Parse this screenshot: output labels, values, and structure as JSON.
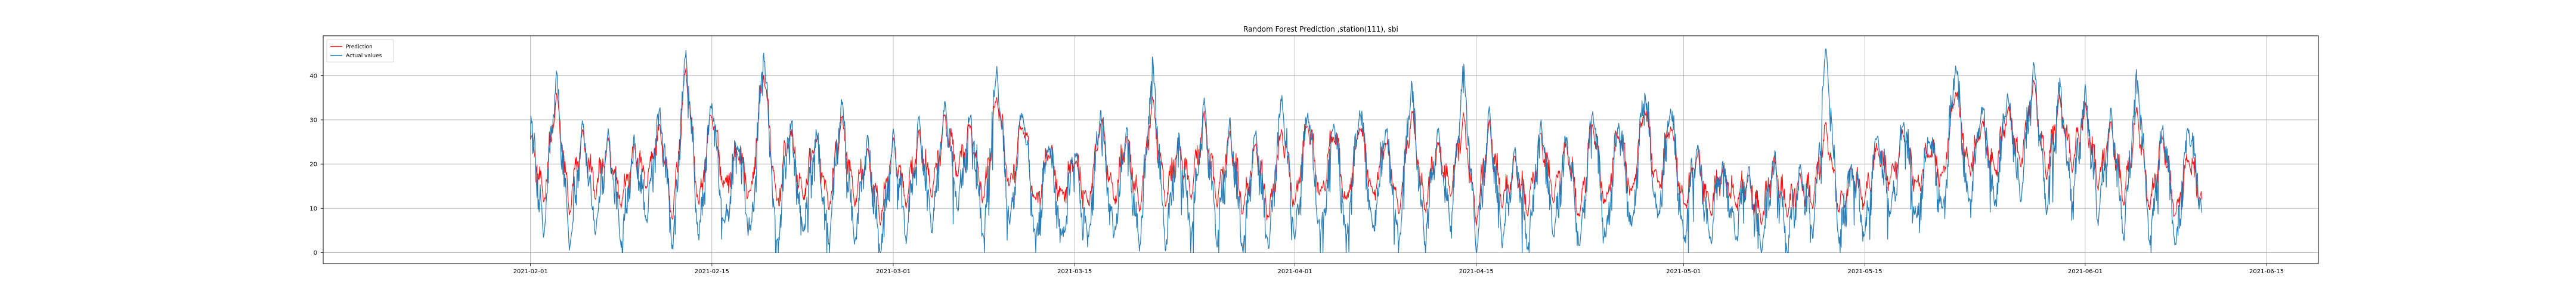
{
  "chart_data": {
    "type": "line",
    "title": "Random Forest Prediction ,station(111), sbi",
    "xlabel": "",
    "ylabel": "",
    "x_range": [
      "2021-01-16",
      "2021-06-19"
    ],
    "ylim": [
      -2.5,
      49
    ],
    "grid": true,
    "legend_position": "top-left",
    "x_ticks": [
      "2021-02-01",
      "2021-02-15",
      "2021-03-01",
      "2021-03-15",
      "2021-04-01",
      "2021-04-15",
      "2021-05-01",
      "2021-05-15",
      "2021-06-01",
      "2021-06-15"
    ],
    "y_ticks": [
      0,
      10,
      20,
      30,
      40
    ],
    "x_start": "2021-02-01",
    "x_end": "2021-06-10",
    "series": [
      {
        "name": "Prediction",
        "color": "#ff0000",
        "points": [
          [
            "2021-02-01",
            26
          ],
          [
            "2021-02-02",
            12
          ],
          [
            "2021-02-03",
            35
          ],
          [
            "2021-02-04",
            10
          ],
          [
            "2021-02-05",
            26
          ],
          [
            "2021-02-06",
            14
          ],
          [
            "2021-02-07",
            24
          ],
          [
            "2021-02-08",
            12
          ],
          [
            "2021-02-09",
            23
          ],
          [
            "2021-02-10",
            16
          ],
          [
            "2021-02-11",
            28
          ],
          [
            "2021-02-12",
            8
          ],
          [
            "2021-02-13",
            42
          ],
          [
            "2021-02-14",
            10
          ],
          [
            "2021-02-15",
            32
          ],
          [
            "2021-02-16",
            14
          ],
          [
            "2021-02-17",
            24
          ],
          [
            "2021-02-18",
            12
          ],
          [
            "2021-02-19",
            42
          ],
          [
            "2021-02-20",
            10
          ],
          [
            "2021-02-21",
            28
          ],
          [
            "2021-02-22",
            12
          ],
          [
            "2021-02-23",
            26
          ],
          [
            "2021-02-24",
            10
          ],
          [
            "2021-02-25",
            30
          ],
          [
            "2021-02-26",
            12
          ],
          [
            "2021-02-27",
            22
          ],
          [
            "2021-02-28",
            8
          ],
          [
            "2021-03-01",
            24
          ],
          [
            "2021-03-02",
            12
          ],
          [
            "2021-03-03",
            26
          ],
          [
            "2021-03-04",
            14
          ],
          [
            "2021-03-05",
            30
          ],
          [
            "2021-03-06",
            18
          ],
          [
            "2021-03-07",
            28
          ],
          [
            "2021-03-08",
            12
          ],
          [
            "2021-03-09",
            36
          ],
          [
            "2021-03-10",
            14
          ],
          [
            "2021-03-11",
            30
          ],
          [
            "2021-03-12",
            10
          ],
          [
            "2021-03-13",
            24
          ],
          [
            "2021-03-14",
            12
          ],
          [
            "2021-03-15",
            22
          ],
          [
            "2021-03-16",
            10
          ],
          [
            "2021-03-17",
            30
          ],
          [
            "2021-03-18",
            12
          ],
          [
            "2021-03-19",
            26
          ],
          [
            "2021-03-20",
            10
          ],
          [
            "2021-03-21",
            34
          ],
          [
            "2021-03-22",
            12
          ],
          [
            "2021-03-23",
            24
          ],
          [
            "2021-03-24",
            14
          ],
          [
            "2021-03-25",
            30
          ],
          [
            "2021-03-26",
            12
          ],
          [
            "2021-03-27",
            26
          ],
          [
            "2021-03-28",
            10
          ],
          [
            "2021-03-29",
            24
          ],
          [
            "2021-03-30",
            8
          ],
          [
            "2021-03-31",
            28
          ],
          [
            "2021-04-01",
            10
          ],
          [
            "2021-04-02",
            30
          ],
          [
            "2021-04-03",
            12
          ],
          [
            "2021-04-04",
            28
          ],
          [
            "2021-04-05",
            10
          ],
          [
            "2021-04-06",
            30
          ],
          [
            "2021-04-07",
            12
          ],
          [
            "2021-04-08",
            26
          ],
          [
            "2021-04-09",
            8
          ],
          [
            "2021-04-10",
            32
          ],
          [
            "2021-04-11",
            10
          ],
          [
            "2021-04-12",
            24
          ],
          [
            "2021-04-13",
            14
          ],
          [
            "2021-04-14",
            30
          ],
          [
            "2021-04-15",
            8
          ],
          [
            "2021-04-16",
            28
          ],
          [
            "2021-04-17",
            12
          ],
          [
            "2021-04-18",
            20
          ],
          [
            "2021-04-19",
            10
          ],
          [
            "2021-04-20",
            26
          ],
          [
            "2021-04-21",
            12
          ],
          [
            "2021-04-22",
            24
          ],
          [
            "2021-04-23",
            8
          ],
          [
            "2021-04-24",
            30
          ],
          [
            "2021-04-25",
            10
          ],
          [
            "2021-04-26",
            28
          ],
          [
            "2021-04-27",
            12
          ],
          [
            "2021-04-28",
            34
          ],
          [
            "2021-04-29",
            14
          ],
          [
            "2021-04-30",
            30
          ],
          [
            "2021-05-01",
            10
          ],
          [
            "2021-05-02",
            22
          ],
          [
            "2021-05-03",
            10
          ],
          [
            "2021-05-04",
            18
          ],
          [
            "2021-05-05",
            12
          ],
          [
            "2021-05-06",
            16
          ],
          [
            "2021-05-07",
            8
          ],
          [
            "2021-05-08",
            20
          ],
          [
            "2021-05-09",
            10
          ],
          [
            "2021-05-10",
            16
          ],
          [
            "2021-05-11",
            12
          ],
          [
            "2021-05-12",
            28
          ],
          [
            "2021-05-13",
            10
          ],
          [
            "2021-05-14",
            18
          ],
          [
            "2021-05-15",
            12
          ],
          [
            "2021-05-16",
            24
          ],
          [
            "2021-05-17",
            16
          ],
          [
            "2021-05-18",
            28
          ],
          [
            "2021-05-19",
            14
          ],
          [
            "2021-05-20",
            24
          ],
          [
            "2021-05-21",
            16
          ],
          [
            "2021-05-22",
            38
          ],
          [
            "2021-05-23",
            18
          ],
          [
            "2021-05-24",
            30
          ],
          [
            "2021-05-25",
            18
          ],
          [
            "2021-05-26",
            32
          ],
          [
            "2021-05-27",
            20
          ],
          [
            "2021-05-28",
            38
          ],
          [
            "2021-05-29",
            18
          ],
          [
            "2021-05-30",
            34
          ],
          [
            "2021-05-31",
            20
          ],
          [
            "2021-06-01",
            32
          ],
          [
            "2021-06-02",
            16
          ],
          [
            "2021-06-03",
            28
          ],
          [
            "2021-06-04",
            12
          ],
          [
            "2021-06-05",
            32
          ],
          [
            "2021-06-06",
            10
          ],
          [
            "2021-06-07",
            26
          ],
          [
            "2021-06-08",
            8
          ],
          [
            "2021-06-09",
            22
          ],
          [
            "2021-06-10",
            12
          ]
        ]
      },
      {
        "name": "Actual values",
        "color": "#1f77b4",
        "points": [
          [
            "2021-02-01",
            31
          ],
          [
            "2021-02-02",
            4
          ],
          [
            "2021-02-03",
            40
          ],
          [
            "2021-02-04",
            2
          ],
          [
            "2021-02-05",
            28
          ],
          [
            "2021-02-06",
            6
          ],
          [
            "2021-02-07",
            26
          ],
          [
            "2021-02-08",
            3
          ],
          [
            "2021-02-09",
            25
          ],
          [
            "2021-02-10",
            8
          ],
          [
            "2021-02-11",
            32
          ],
          [
            "2021-02-12",
            1
          ],
          [
            "2021-02-13",
            46
          ],
          [
            "2021-02-14",
            2
          ],
          [
            "2021-02-15",
            35
          ],
          [
            "2021-02-16",
            5
          ],
          [
            "2021-02-17",
            26
          ],
          [
            "2021-02-18",
            3
          ],
          [
            "2021-02-19",
            47
          ],
          [
            "2021-02-20",
            1
          ],
          [
            "2021-02-21",
            31
          ],
          [
            "2021-02-22",
            4
          ],
          [
            "2021-02-23",
            28
          ],
          [
            "2021-02-24",
            2
          ],
          [
            "2021-02-25",
            34
          ],
          [
            "2021-02-26",
            3
          ],
          [
            "2021-02-27",
            25
          ],
          [
            "2021-02-28",
            1
          ],
          [
            "2021-03-01",
            26
          ],
          [
            "2021-03-02",
            4
          ],
          [
            "2021-03-03",
            29
          ],
          [
            "2021-03-04",
            6
          ],
          [
            "2021-03-05",
            33
          ],
          [
            "2021-03-06",
            10
          ],
          [
            "2021-03-07",
            31
          ],
          [
            "2021-03-08",
            3
          ],
          [
            "2021-03-09",
            43
          ],
          [
            "2021-03-10",
            5
          ],
          [
            "2021-03-11",
            33
          ],
          [
            "2021-03-12",
            1
          ],
          [
            "2021-03-13",
            26
          ],
          [
            "2021-03-14",
            2
          ],
          [
            "2021-03-15",
            24
          ],
          [
            "2021-03-16",
            2
          ],
          [
            "2021-03-17",
            33
          ],
          [
            "2021-03-18",
            3
          ],
          [
            "2021-03-19",
            28
          ],
          [
            "2021-03-20",
            1
          ],
          [
            "2021-03-21",
            43
          ],
          [
            "2021-03-22",
            2
          ],
          [
            "2021-03-23",
            26
          ],
          [
            "2021-03-24",
            5
          ],
          [
            "2021-03-25",
            33
          ],
          [
            "2021-03-26",
            3
          ],
          [
            "2021-03-27",
            29
          ],
          [
            "2021-03-28",
            1
          ],
          [
            "2021-03-29",
            27
          ],
          [
            "2021-03-30",
            1
          ],
          [
            "2021-03-31",
            36
          ],
          [
            "2021-04-01",
            2
          ],
          [
            "2021-04-02",
            33
          ],
          [
            "2021-04-03",
            3
          ],
          [
            "2021-04-04",
            31
          ],
          [
            "2021-04-05",
            2
          ],
          [
            "2021-04-06",
            34
          ],
          [
            "2021-04-07",
            4
          ],
          [
            "2021-04-08",
            29
          ],
          [
            "2021-04-09",
            1
          ],
          [
            "2021-04-10",
            39
          ],
          [
            "2021-04-11",
            2
          ],
          [
            "2021-04-12",
            27
          ],
          [
            "2021-04-13",
            6
          ],
          [
            "2021-04-14",
            42
          ],
          [
            "2021-04-15",
            1
          ],
          [
            "2021-04-16",
            31
          ],
          [
            "2021-04-17",
            3
          ],
          [
            "2021-04-18",
            22
          ],
          [
            "2021-04-19",
            2
          ],
          [
            "2021-04-20",
            29
          ],
          [
            "2021-04-21",
            4
          ],
          [
            "2021-04-22",
            26
          ],
          [
            "2021-04-23",
            1
          ],
          [
            "2021-04-24",
            33
          ],
          [
            "2021-04-25",
            2
          ],
          [
            "2021-04-26",
            31
          ],
          [
            "2021-04-27",
            4
          ],
          [
            "2021-04-28",
            38
          ],
          [
            "2021-04-29",
            6
          ],
          [
            "2021-04-30",
            34
          ],
          [
            "2021-05-01",
            2
          ],
          [
            "2021-05-02",
            24
          ],
          [
            "2021-05-03",
            3
          ],
          [
            "2021-05-04",
            20
          ],
          [
            "2021-05-05",
            4
          ],
          [
            "2021-05-06",
            18
          ],
          [
            "2021-05-07",
            1
          ],
          [
            "2021-05-08",
            22
          ],
          [
            "2021-05-09",
            2
          ],
          [
            "2021-05-10",
            18
          ],
          [
            "2021-05-11",
            5
          ],
          [
            "2021-05-12",
            46
          ],
          [
            "2021-05-13",
            3
          ],
          [
            "2021-05-14",
            20
          ],
          [
            "2021-05-15",
            4
          ],
          [
            "2021-05-16",
            27
          ],
          [
            "2021-05-17",
            8
          ],
          [
            "2021-05-18",
            31
          ],
          [
            "2021-05-19",
            6
          ],
          [
            "2021-05-20",
            27
          ],
          [
            "2021-05-21",
            8
          ],
          [
            "2021-05-22",
            44
          ],
          [
            "2021-05-23",
            10
          ],
          [
            "2021-05-24",
            34
          ],
          [
            "2021-05-25",
            10
          ],
          [
            "2021-05-26",
            36
          ],
          [
            "2021-05-27",
            12
          ],
          [
            "2021-05-28",
            42
          ],
          [
            "2021-05-29",
            10
          ],
          [
            "2021-05-30",
            38
          ],
          [
            "2021-05-31",
            12
          ],
          [
            "2021-06-01",
            36
          ],
          [
            "2021-06-02",
            8
          ],
          [
            "2021-06-03",
            31
          ],
          [
            "2021-06-04",
            4
          ],
          [
            "2021-06-05",
            41
          ],
          [
            "2021-06-06",
            2
          ],
          [
            "2021-06-07",
            29
          ],
          [
            "2021-06-08",
            1
          ],
          [
            "2021-06-09",
            29
          ],
          [
            "2021-06-10",
            9
          ]
        ]
      }
    ]
  }
}
